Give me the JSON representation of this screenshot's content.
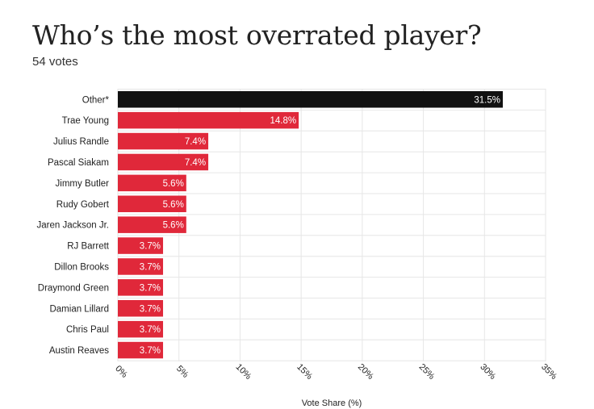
{
  "title": "Who’s the most overrated player?",
  "subtitle": "54 votes",
  "colors": {
    "highlight": "#111111",
    "bar": "#e0283a",
    "grid": "#e6e6e6",
    "text": "#222222",
    "value_label": "#ffffff"
  },
  "chart_data": {
    "type": "bar",
    "orientation": "horizontal",
    "categories": [
      "Other*",
      "Trae Young",
      "Julius Randle",
      "Pascal Siakam",
      "Jimmy Butler",
      "Rudy Gobert",
      "Jaren Jackson Jr.",
      "RJ Barrett",
      "Dillon Brooks",
      "Draymond Green",
      "Damian Lillard",
      "Chris Paul",
      "Austin Reaves"
    ],
    "values": [
      31.5,
      14.8,
      7.4,
      7.4,
      5.6,
      5.6,
      5.6,
      3.7,
      3.7,
      3.7,
      3.7,
      3.7,
      3.7
    ],
    "value_labels": [
      "31.5%",
      "14.8%",
      "7.4%",
      "7.4%",
      "5.6%",
      "5.6%",
      "5.6%",
      "3.7%",
      "3.7%",
      "3.7%",
      "3.7%",
      "3.7%",
      "3.7%"
    ],
    "highlight_index": 0,
    "xlim": [
      0,
      35
    ],
    "xticks": [
      0,
      5,
      10,
      15,
      20,
      25,
      30,
      35
    ],
    "xtick_labels": [
      "0%",
      "5%",
      "10%",
      "15%",
      "20%",
      "25%",
      "30%",
      "35%"
    ],
    "xlabel": "Vote Share (%)",
    "ylabel": "",
    "grid": true
  }
}
